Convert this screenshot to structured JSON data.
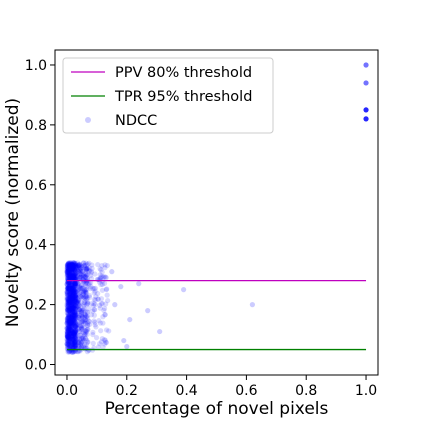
{
  "chart_data": {
    "type": "scatter",
    "xlabel": "Percentage of novel pixels",
    "ylabel": "Novelty score (normalized)",
    "xlim": [
      -0.04,
      1.04
    ],
    "ylim": [
      -0.035,
      1.05
    ],
    "xticks": [
      0.0,
      0.2,
      0.4,
      0.6,
      0.8,
      1.0
    ],
    "xtick_labels": [
      "0.0",
      "0.2",
      "0.4",
      "0.6",
      "0.8",
      "1.0"
    ],
    "yticks": [
      0.0,
      0.2,
      0.4,
      0.6,
      0.8,
      1.0
    ],
    "ytick_labels": [
      "0.0",
      "0.2",
      "0.4",
      "0.6",
      "0.8",
      "1.0"
    ],
    "grid": false,
    "legend_position": "upper-left",
    "lines": [
      {
        "name": "PPV 80% threshold",
        "y": 0.28,
        "x_range": [
          0.0,
          1.0
        ],
        "color": "#bf00bf"
      },
      {
        "name": "TPR 95% threshold",
        "y": 0.05,
        "x_range": [
          0.0,
          1.0
        ],
        "color": "#008000"
      }
    ],
    "series": [
      {
        "name": "NDCC",
        "color": "#0000ff",
        "alpha": 0.15,
        "cluster": {
          "x_range": [
            0.0,
            0.14
          ],
          "y_range": [
            0.04,
            0.34
          ],
          "density": "very dense near x = 0.00 - 0.05, thinning toward x = 0.15"
        },
        "points": [
          {
            "x": 0.15,
            "y": 0.31
          },
          {
            "x": 0.16,
            "y": 0.2
          },
          {
            "x": 0.18,
            "y": 0.26
          },
          {
            "x": 0.19,
            "y": 0.08
          },
          {
            "x": 0.2,
            "y": 0.06
          },
          {
            "x": 0.21,
            "y": 0.15
          },
          {
            "x": 0.24,
            "y": 0.27
          },
          {
            "x": 0.27,
            "y": 0.18
          },
          {
            "x": 0.31,
            "y": 0.11
          },
          {
            "x": 0.39,
            "y": 0.25
          },
          {
            "x": 0.62,
            "y": 0.2
          },
          {
            "x": 1.0,
            "y": 1.0
          },
          {
            "x": 1.0,
            "y": 0.94
          },
          {
            "x": 1.0,
            "y": 0.85
          },
          {
            "x": 1.0,
            "y": 0.82
          }
        ]
      }
    ]
  }
}
